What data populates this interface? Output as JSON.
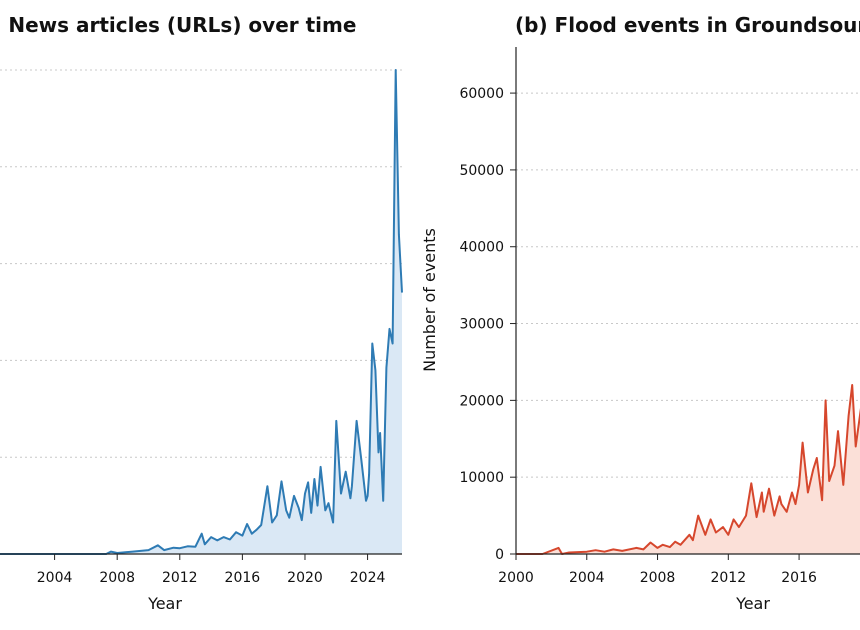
{
  "chart_data": [
    {
      "type": "area",
      "panel": "a",
      "title": "(a)  News articles (URLs) over time",
      "xlabel": "Year",
      "ylabel": "",
      "xlim": [
        2000,
        2026.2
      ],
      "ylim": [
        0,
        100
      ],
      "x_ticks": [
        2004,
        2008,
        2012,
        2016,
        2020,
        2024
      ],
      "y_grid": [
        20,
        40,
        60,
        80,
        100
      ],
      "grid": "horizontal dotted",
      "color": "#2e7bb4",
      "fill_color": "#dae8f5",
      "x": [
        2000,
        2007.3,
        2007.6,
        2008,
        2009,
        2010,
        2010.6,
        2011,
        2011.6,
        2012,
        2012.5,
        2013,
        2013.4,
        2013.6,
        2014,
        2014.4,
        2014.8,
        2015.2,
        2015.6,
        2016,
        2016.3,
        2016.6,
        2016.9,
        2017.2,
        2017.6,
        2017.9,
        2018.2,
        2018.5,
        2018.8,
        2019,
        2019.3,
        2019.6,
        2019.8,
        2020,
        2020.2,
        2020.4,
        2020.6,
        2020.8,
        2021,
        2021.3,
        2021.5,
        2021.8,
        2022,
        2022.3,
        2022.6,
        2022.9,
        2023,
        2023.3,
        2023.6,
        2023.9,
        2024,
        2024.1,
        2024.3,
        2024.5,
        2024.7,
        2024.8,
        2025,
        2025.2,
        2025.4,
        2025.6,
        2025.8,
        2026,
        2026.2
      ],
      "values": [
        0,
        0,
        0.5,
        0.2,
        0.5,
        0.8,
        1.8,
        0.8,
        1.3,
        1.2,
        1.6,
        1.5,
        4.2,
        2.0,
        3.5,
        2.8,
        3.5,
        3.0,
        4.5,
        3.8,
        6.2,
        4.2,
        5.0,
        6.0,
        14.0,
        6.5,
        8.0,
        15.0,
        9.0,
        7.5,
        12.0,
        9.5,
        7.0,
        12.5,
        14.8,
        8.5,
        15.5,
        10.0,
        18.0,
        9.0,
        10.5,
        6.5,
        27.5,
        12.5,
        17.0,
        11.5,
        14.0,
        27.5,
        19.5,
        11.0,
        12.0,
        16.5,
        43.5,
        38.0,
        21.0,
        25.0,
        11.0,
        38.5,
        46.5,
        43.5,
        100.0,
        66.0,
        54.0
      ]
    },
    {
      "type": "area",
      "panel": "b",
      "title": "(b)  Flood events in Groundsource",
      "xlabel": "Year",
      "ylabel": "Number of events",
      "xlim": [
        2000,
        2019.5
      ],
      "ylim": [
        0,
        66000
      ],
      "x_ticks": [
        2000,
        2004,
        2008,
        2012,
        2016
      ],
      "y_ticks": [
        0,
        10000,
        20000,
        30000,
        40000,
        50000,
        60000
      ],
      "grid": "horizontal dotted",
      "color": "#d6472d",
      "fill_color": "#fbe0d8",
      "x": [
        2000,
        2001.5,
        2002.4,
        2002.6,
        2003,
        2004,
        2004.5,
        2005,
        2005.5,
        2006,
        2006.8,
        2007.2,
        2007.6,
        2008,
        2008.3,
        2008.7,
        2009,
        2009.3,
        2009.8,
        2010,
        2010.3,
        2010.7,
        2011,
        2011.3,
        2011.7,
        2012,
        2012.3,
        2012.6,
        2013,
        2013.3,
        2013.6,
        2013.9,
        2014,
        2014.3,
        2014.6,
        2014.9,
        2015,
        2015.3,
        2015.6,
        2015.8,
        2016,
        2016.2,
        2016.5,
        2016.8,
        2017,
        2017.3,
        2017.5,
        2017.7,
        2018,
        2018.2,
        2018.5,
        2018.8,
        2019,
        2019.2,
        2019.5
      ],
      "values": [
        0,
        0,
        800,
        0,
        200,
        300,
        500,
        300,
        600,
        400,
        800,
        600,
        1500,
        800,
        1200,
        900,
        1600,
        1200,
        2500,
        1800,
        5000,
        2500,
        4500,
        2800,
        3500,
        2500,
        4500,
        3500,
        5000,
        9200,
        4800,
        8000,
        5500,
        8500,
        5000,
        7500,
        6500,
        5500,
        8000,
        6500,
        9000,
        14500,
        8000,
        11000,
        12500,
        7000,
        20000,
        9500,
        11500,
        16000,
        9000,
        18000,
        22000,
        14000,
        19000
      ]
    }
  ]
}
